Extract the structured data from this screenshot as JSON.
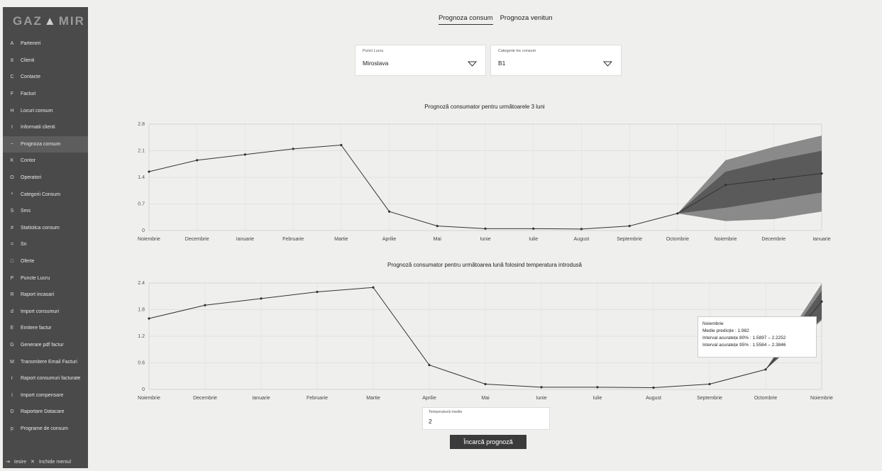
{
  "logo": {
    "left": "GAZ",
    "mid": "▲",
    "right": "MIR"
  },
  "sidebar": {
    "items": [
      {
        "label": "Parteneri",
        "icon": "A"
      },
      {
        "label": "Clienti",
        "icon": "8"
      },
      {
        "label": "Contacte",
        "icon": "C"
      },
      {
        "label": "Facturi",
        "icon": "F"
      },
      {
        "label": "Locuri consum",
        "icon": "H"
      },
      {
        "label": "Informatii clienti",
        "icon": "I"
      },
      {
        "label": "Prognoza consum",
        "icon": "~"
      },
      {
        "label": "Contor",
        "icon": "K"
      },
      {
        "label": "Operatori",
        "icon": "O"
      },
      {
        "label": "Categorii Consum",
        "icon": "*"
      },
      {
        "label": "Sms",
        "icon": "S"
      },
      {
        "label": "Statistica consum",
        "icon": "#"
      },
      {
        "label": "Sn",
        "icon": "="
      },
      {
        "label": "Oferte",
        "icon": "□"
      },
      {
        "label": "Puncte Lucru",
        "icon": "P"
      },
      {
        "label": "Raport incasari",
        "icon": "R"
      },
      {
        "label": "Import consumuri",
        "icon": "d"
      },
      {
        "label": "Emitere factur",
        "icon": "E"
      },
      {
        "label": "Generare pdf factur",
        "icon": "G"
      },
      {
        "label": "Transmitere Email Facturi",
        "icon": "M"
      },
      {
        "label": "Raport consumuri facturate",
        "icon": "r"
      },
      {
        "label": "Import compensare",
        "icon": "i"
      },
      {
        "label": "Raportare Datacare",
        "icon": "D"
      },
      {
        "label": "Programe de consum",
        "icon": "p"
      }
    ],
    "footer_logout": "Iesire",
    "footer_close": "Inchide meniul"
  },
  "tabs": [
    {
      "label": "Prognoza consum"
    },
    {
      "label": "Prognoza venitun"
    }
  ],
  "filters": {
    "punct_lucru": {
      "label": "Punct Lucru",
      "value": "Miroslava"
    },
    "categorie": {
      "label": "Categorie loc consum",
      "value": "B1"
    }
  },
  "chart1_title": "Prognoză consumator pentru următoarele 3 luni",
  "chart2_title": "Prognoză consumator pentru următoarea lună folosind temperatura introdusă",
  "tooltip": {
    "title": "Noiembrie",
    "line1": "Medie predicție : 1.982",
    "line2": "Interval acuratețe 80% : 1.5897 – 2.2252",
    "line3": "Interval acuratețe 95% : 1.5584 – 2.3846"
  },
  "temperature": {
    "label": "Temperatură medie",
    "value": "2"
  },
  "button": {
    "label": "Încarcă prognoză"
  },
  "colors": {
    "sidebar": "#4a4a4a",
    "line": "#333333",
    "band95": "#8a8a8a",
    "band80": "#5a5a5a",
    "button": "#3b3b3b"
  },
  "chart_data": [
    {
      "type": "line",
      "title": "Prognoză consumator pentru următoarele 3 luni",
      "categories": [
        "Noiembrie",
        "Decembrie",
        "Ianuarie",
        "Februarie",
        "Martie",
        "Aprilie",
        "Mai",
        "Iunie",
        "Iulie",
        "August",
        "Septembrie",
        "Octombrie",
        "Noiembrie",
        "Decembrie",
        "Ianuarie"
      ],
      "values": [
        1.55,
        1.85,
        2.0,
        2.15,
        2.25,
        0.5,
        0.12,
        0.05,
        0.05,
        0.04,
        0.12,
        0.45,
        1.2,
        1.35,
        1.5
      ],
      "forecast_from": 11,
      "band95": [
        [
          0.45,
          0.45
        ],
        [
          0.25,
          1.85
        ],
        [
          0.3,
          2.2
        ],
        [
          0.5,
          2.5
        ]
      ],
      "band80": [
        [
          0.45,
          0.45
        ],
        [
          0.6,
          1.55
        ],
        [
          0.8,
          1.85
        ],
        [
          1.0,
          2.1
        ]
      ],
      "ylim": [
        0,
        2.8
      ],
      "yticks": [
        0,
        0.7,
        1.4,
        2.1,
        2.8
      ],
      "grid": true
    },
    {
      "type": "line",
      "title": "Prognoză consumator pentru următoarea lună folosind temperatura introdusă",
      "categories": [
        "Noiembrie",
        "Decembrie",
        "Ianuarie",
        "Februarie",
        "Martie",
        "Aprilie",
        "Mai",
        "Iunie",
        "Iulie",
        "August",
        "Septembrie",
        "Octombrie",
        "Noiembrie"
      ],
      "values": [
        1.6,
        1.9,
        2.05,
        2.2,
        2.3,
        0.55,
        0.12,
        0.05,
        0.05,
        0.04,
        0.12,
        0.45,
        1.982
      ],
      "forecast_from": 11,
      "band95": [
        [
          0.45,
          0.45
        ],
        [
          1.5584,
          2.3846
        ]
      ],
      "band80": [
        [
          0.45,
          0.45
        ],
        [
          1.5897,
          2.2252
        ]
      ],
      "ylim": [
        0,
        2.4
      ],
      "yticks": [
        0,
        0.6,
        1.2,
        1.8,
        2.4
      ],
      "grid": true
    }
  ]
}
